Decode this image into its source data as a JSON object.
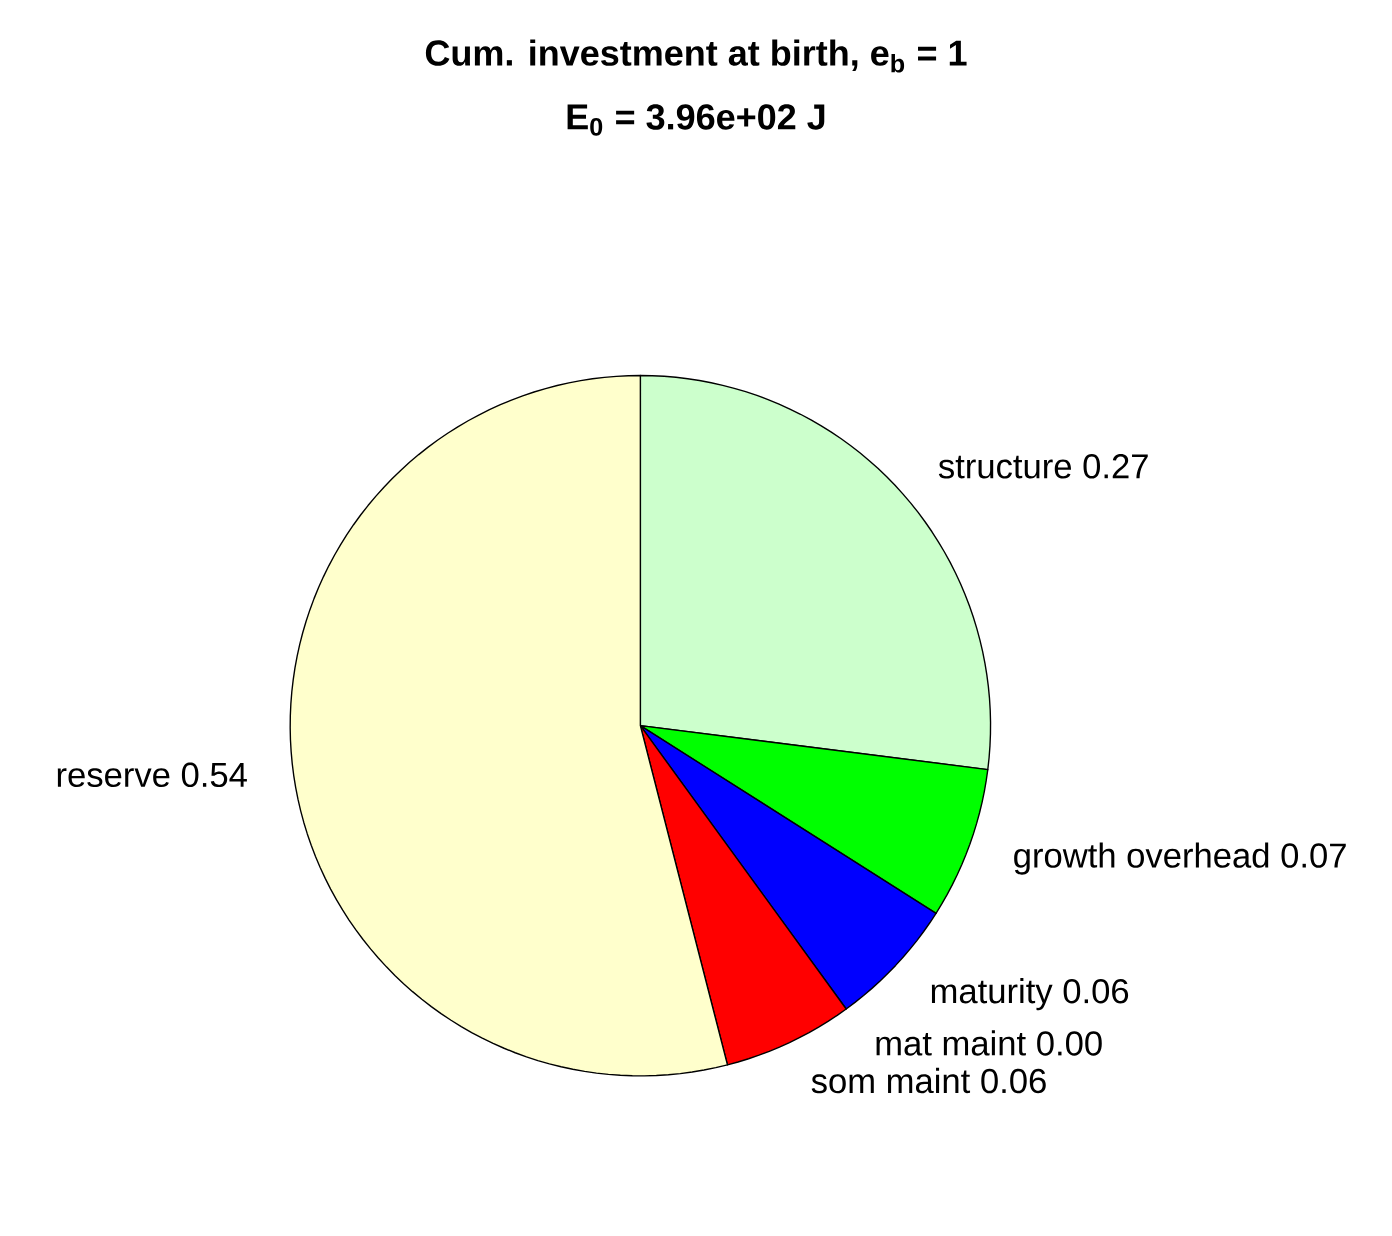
{
  "chart_data": {
    "type": "pie",
    "title": "Cum. investment at birth, e$_{b}$ = 1",
    "subtitle": "E$_{0}$ = 3.96e+02 J",
    "categories": [
      "structure",
      "growth overhead",
      "maturity",
      "mat maint",
      "som maint",
      "reserve"
    ],
    "values": [
      0.27,
      0.07,
      0.06,
      0.0,
      0.06,
      0.54
    ],
    "value_labels": [
      "0.27",
      "0.07",
      "0.06",
      "0.00",
      "0.06",
      "0.54"
    ],
    "colors": [
      "#ccffcc",
      "#00ff00",
      "#0000ff",
      "#ffffff",
      "#ff0000",
      "#ffffcc"
    ]
  }
}
